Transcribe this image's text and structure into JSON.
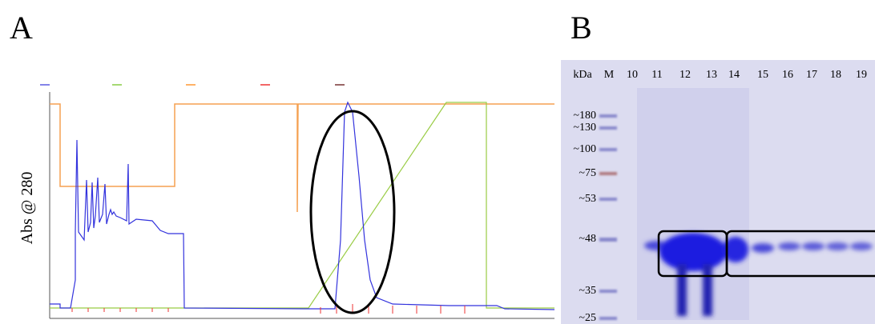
{
  "panels": [
    {
      "label": "A",
      "y_axis_label": "Abs @ 280"
    },
    {
      "label": "B",
      "lane_header": [
        "kDa",
        "M",
        "10",
        "11",
        "12",
        "13",
        "14",
        "15",
        "16",
        "17",
        "18",
        "19"
      ],
      "markers": [
        "~180",
        "~130",
        "~100",
        "~75",
        "~53",
        "~48",
        "~35",
        "~25"
      ]
    }
  ]
}
